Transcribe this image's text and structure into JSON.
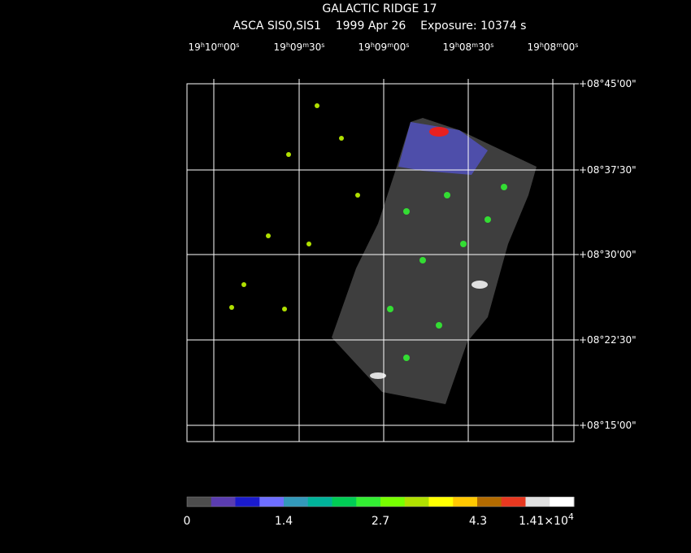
{
  "header": {
    "title": "GALACTIC RIDGE 17",
    "subtitle": "ASCA SIS0,SIS1    1999 Apr 26    Exposure: 10374 s"
  },
  "ra_ticks": [
    [
      "19",
      "h",
      "10",
      "m",
      "00",
      "s"
    ],
    [
      "19",
      "h",
      "09",
      "m",
      "30",
      "s"
    ],
    [
      "19",
      "h",
      "09",
      "m",
      "00",
      "s"
    ],
    [
      "19",
      "h",
      "08",
      "m",
      "30",
      "s"
    ],
    [
      "19",
      "h",
      "08",
      "m",
      "00",
      "s"
    ]
  ],
  "dec_ticks": [
    "+08°45'00\"",
    "+08°37'30\"",
    "+08°30'00\"",
    "+08°22'30\"",
    "+08°15'00\""
  ],
  "colorbar": {
    "colors": [
      "#4d4d4d",
      "#5a3cb0",
      "#1a1acc",
      "#6e6eff",
      "#3399bb",
      "#00b39a",
      "#00cc55",
      "#33ee33",
      "#77ff00",
      "#b0e000",
      "#ffff00",
      "#ffc800",
      "#b36b00",
      "#e83820",
      "#ff0000",
      "#e0e0e0",
      "#ffffff"
    ],
    "labels": [
      [
        "0"
      ],
      [
        "1.4"
      ],
      [
        "2.7"
      ],
      [
        "4.3"
      ],
      [
        "1.41×10",
        "4"
      ]
    ]
  },
  "grid_color": "#ffffff"
}
